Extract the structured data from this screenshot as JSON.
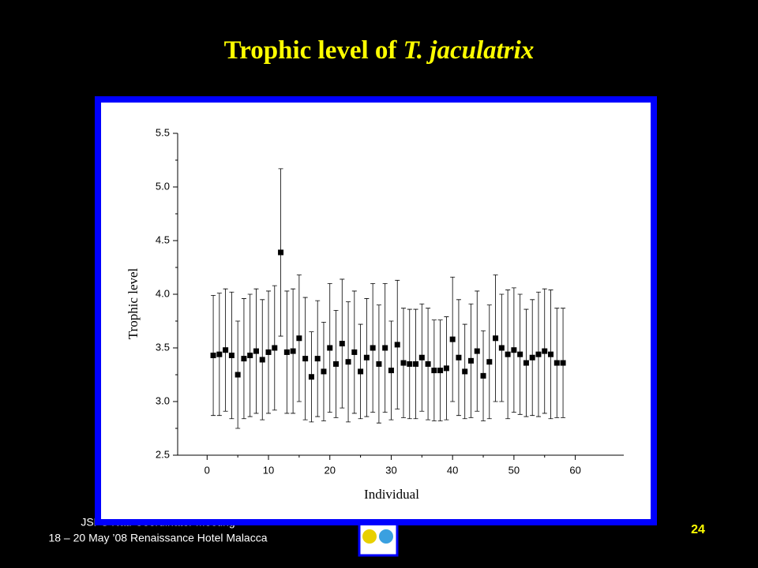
{
  "slide": {
    "title": [
      "Trophic level of",
      "T. jaculatrix"
    ],
    "footer": [
      "JSPS Nat. Coordinator Meeting",
      "18 – 20 May ’08 Renaissance Hotel Malacca"
    ],
    "page_number": "24"
  },
  "chart_data": {
    "type": "scatter",
    "x_label": "Individual",
    "y_label": "Trophic level",
    "xlim": [
      -4.8,
      67.9
    ],
    "xticks": [
      0,
      10,
      20,
      30,
      40,
      50,
      60
    ],
    "ylim": [
      2.5,
      5.5
    ],
    "yticks": [
      {
        "value": 2.5,
        "label": "2.5"
      },
      {
        "value": 3,
        "label": "3.0"
      },
      {
        "value": 3.5,
        "label": "3.5"
      },
      {
        "value": 4,
        "label": "4.0"
      },
      {
        "value": 4.5,
        "label": "4.5"
      },
      {
        "value": 5,
        "label": "5.0"
      },
      {
        "value": 5.5,
        "label": "5.5"
      }
    ],
    "color": "#000000",
    "x": [
      1,
      2,
      3,
      4,
      5,
      6,
      7,
      8,
      9,
      10,
      11,
      12,
      13,
      14,
      15,
      16,
      17,
      18,
      19,
      20,
      21,
      22,
      23,
      24,
      25,
      26,
      27,
      28,
      29,
      30,
      31,
      32,
      33,
      34,
      35,
      36,
      37,
      38,
      39,
      40,
      41,
      42,
      43,
      44,
      45,
      46,
      47,
      48,
      49,
      50,
      51,
      52,
      53,
      54,
      55,
      56,
      57,
      58
    ],
    "values": [
      3.43,
      3.44,
      3.48,
      3.43,
      3.25,
      3.4,
      3.43,
      3.47,
      3.39,
      3.46,
      3.5,
      4.39,
      3.46,
      3.47,
      3.59,
      3.4,
      3.23,
      3.4,
      3.28,
      3.5,
      3.35,
      3.54,
      3.37,
      3.46,
      3.28,
      3.41,
      3.5,
      3.35,
      3.5,
      3.29,
      3.53,
      3.36,
      3.35,
      3.35,
      3.41,
      3.35,
      3.29,
      3.29,
      3.31,
      3.58,
      3.41,
      3.28,
      3.38,
      3.47,
      3.24,
      3.37,
      3.59,
      3.5,
      3.44,
      3.48,
      3.44,
      3.36,
      3.41,
      3.44,
      3.47,
      3.44,
      3.36,
      3.36
    ],
    "errors": [
      0.56,
      0.57,
      0.57,
      0.59,
      0.5,
      0.56,
      0.57,
      0.58,
      0.56,
      0.57,
      0.58,
      0.78,
      0.57,
      0.58,
      0.59,
      0.57,
      0.42,
      0.54,
      0.46,
      0.6,
      0.5,
      0.6,
      0.56,
      0.57,
      0.44,
      0.55,
      0.6,
      0.55,
      0.6,
      0.46,
      0.6,
      0.51,
      0.51,
      0.51,
      0.5,
      0.52,
      0.47,
      0.47,
      0.48,
      0.58,
      0.54,
      0.44,
      0.53,
      0.56,
      0.42,
      0.53,
      0.59,
      0.5,
      0.6,
      0.58,
      0.56,
      0.5,
      0.54,
      0.58,
      0.58,
      0.6,
      0.51,
      0.51
    ]
  }
}
